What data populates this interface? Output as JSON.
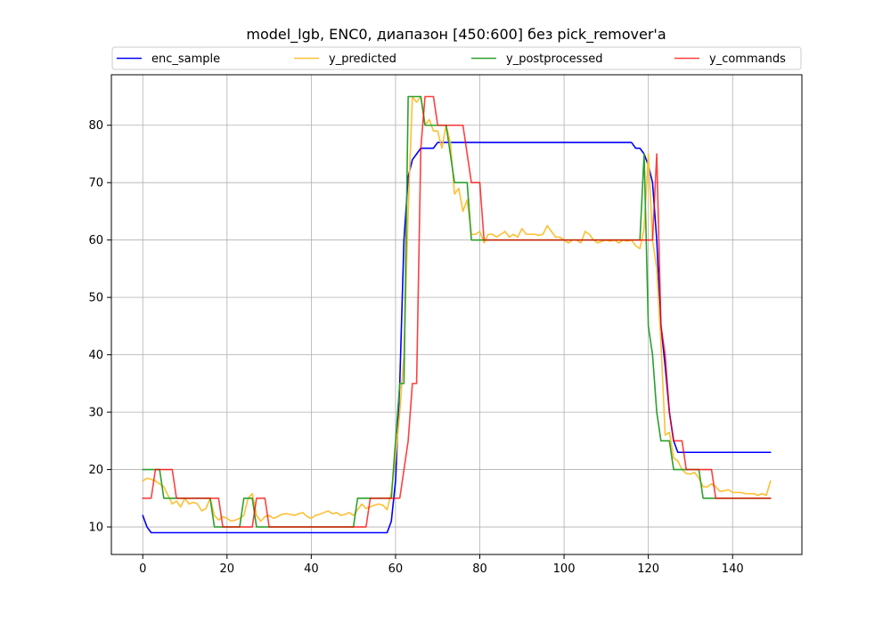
{
  "chart_data": {
    "type": "line",
    "title": "model_lgb, ENC0, диапазон [450:600] без pick_remover'a",
    "xlabel": "",
    "ylabel": "",
    "xlim": [
      -7.45,
      156.45
    ],
    "ylim": [
      5.2,
      88.8
    ],
    "xticks": [
      0,
      20,
      40,
      60,
      80,
      100,
      120,
      140
    ],
    "yticks": [
      10,
      20,
      30,
      40,
      50,
      60,
      70,
      80
    ],
    "grid": true,
    "legend_position": "top",
    "series": [
      {
        "name": "enc_sample",
        "color": "#0000ff",
        "opacity": 1,
        "points": [
          [
            0,
            12
          ],
          [
            1,
            10
          ],
          [
            2,
            9
          ],
          [
            58,
            9
          ],
          [
            59,
            11
          ],
          [
            60,
            18
          ],
          [
            61,
            35
          ],
          [
            62,
            60
          ],
          [
            63,
            71
          ],
          [
            64,
            74
          ],
          [
            65,
            75
          ],
          [
            66,
            76
          ],
          [
            69,
            76
          ],
          [
            70,
            77
          ],
          [
            116,
            77
          ],
          [
            117,
            76
          ],
          [
            118,
            76
          ],
          [
            119,
            75
          ],
          [
            120,
            73
          ],
          [
            121,
            70
          ],
          [
            122,
            60
          ],
          [
            123,
            45
          ],
          [
            124,
            38
          ],
          [
            125,
            30
          ],
          [
            126,
            25
          ],
          [
            127,
            23
          ],
          [
            149,
            23
          ]
        ]
      },
      {
        "name": "y_predicted",
        "color": "#ffbf33",
        "opacity": 1,
        "points": [
          [
            0,
            18
          ],
          [
            1,
            18.5
          ],
          [
            2,
            18.3
          ],
          [
            3,
            18
          ],
          [
            4,
            17.5
          ],
          [
            5,
            17
          ],
          [
            6,
            15.5
          ],
          [
            7,
            14
          ],
          [
            8,
            14.5
          ],
          [
            9,
            13.5
          ],
          [
            10,
            15
          ],
          [
            11,
            14
          ],
          [
            12,
            14.3
          ],
          [
            13,
            14
          ],
          [
            14,
            12.8
          ],
          [
            15,
            13.2
          ],
          [
            16,
            15
          ],
          [
            17,
            12
          ],
          [
            18,
            11.2
          ],
          [
            19,
            11.8
          ],
          [
            20,
            11.5
          ],
          [
            21,
            11
          ],
          [
            22,
            11.2
          ],
          [
            23,
            11.5
          ],
          [
            24,
            12
          ],
          [
            25,
            15
          ],
          [
            26,
            15.8
          ],
          [
            27,
            12
          ],
          [
            28,
            11
          ],
          [
            29,
            11.8
          ],
          [
            30,
            12
          ],
          [
            31,
            11.5
          ],
          [
            32,
            11.8
          ],
          [
            33,
            12.2
          ],
          [
            34,
            12.3
          ],
          [
            35,
            12.2
          ],
          [
            36,
            12
          ],
          [
            37,
            12.3
          ],
          [
            38,
            12.5
          ],
          [
            39,
            11.8
          ],
          [
            40,
            11.5
          ],
          [
            41,
            12
          ],
          [
            42,
            12.2
          ],
          [
            43,
            12.5
          ],
          [
            44,
            12.8
          ],
          [
            45,
            12.3
          ],
          [
            46,
            12.5
          ],
          [
            47,
            12
          ],
          [
            48,
            12.2
          ],
          [
            49,
            12.5
          ],
          [
            50,
            12
          ],
          [
            51,
            13
          ],
          [
            52,
            14
          ],
          [
            53,
            13.2
          ],
          [
            54,
            13.5
          ],
          [
            55,
            13.8
          ],
          [
            56,
            14
          ],
          [
            57,
            13.8
          ],
          [
            58,
            13
          ],
          [
            59,
            16
          ],
          [
            60,
            22
          ],
          [
            61,
            30
          ],
          [
            62,
            40
          ],
          [
            63,
            65
          ],
          [
            64,
            85
          ],
          [
            65,
            84
          ],
          [
            66,
            85
          ],
          [
            67,
            80
          ],
          [
            68,
            81
          ],
          [
            69,
            79
          ],
          [
            70,
            79
          ],
          [
            71,
            76
          ],
          [
            72,
            80
          ],
          [
            73,
            77
          ],
          [
            74,
            68
          ],
          [
            75,
            69
          ],
          [
            76,
            65
          ],
          [
            77,
            67
          ],
          [
            78,
            61
          ],
          [
            79,
            61
          ],
          [
            80,
            61.5
          ],
          [
            81,
            59.5
          ],
          [
            82,
            61
          ],
          [
            83,
            61
          ],
          [
            84,
            60.5
          ],
          [
            85,
            61
          ],
          [
            86,
            61.5
          ],
          [
            87,
            60.5
          ],
          [
            88,
            61
          ],
          [
            89,
            60.5
          ],
          [
            90,
            62
          ],
          [
            91,
            61
          ],
          [
            92,
            61
          ],
          [
            93,
            61
          ],
          [
            94,
            60.8
          ],
          [
            95,
            61
          ],
          [
            96,
            62.5
          ],
          [
            97,
            61.5
          ],
          [
            98,
            60.5
          ],
          [
            99,
            60.5
          ],
          [
            100,
            60
          ],
          [
            101,
            59.5
          ],
          [
            102,
            60
          ],
          [
            103,
            60
          ],
          [
            104,
            59.5
          ],
          [
            105,
            61.5
          ],
          [
            106,
            61
          ],
          [
            107,
            60
          ],
          [
            108,
            59.5
          ],
          [
            109,
            59.8
          ],
          [
            110,
            60
          ],
          [
            111,
            59.8
          ],
          [
            112,
            60
          ],
          [
            113,
            59.5
          ],
          [
            114,
            60
          ],
          [
            115,
            59.8
          ],
          [
            116,
            60
          ],
          [
            117,
            59
          ],
          [
            118,
            58.5
          ],
          [
            119,
            62
          ],
          [
            120,
            75
          ],
          [
            121,
            60
          ],
          [
            122,
            55
          ],
          [
            123,
            42
          ],
          [
            124,
            26
          ],
          [
            125,
            26.5
          ],
          [
            126,
            22
          ],
          [
            127,
            21.5
          ],
          [
            128,
            20
          ],
          [
            129,
            19.3
          ],
          [
            130,
            19.2
          ],
          [
            131,
            19.5
          ],
          [
            132,
            18.5
          ],
          [
            133,
            17
          ],
          [
            134,
            17
          ],
          [
            135,
            17.5
          ],
          [
            136,
            17
          ],
          [
            137,
            16.2
          ],
          [
            138,
            16.3
          ],
          [
            139,
            16.5
          ],
          [
            140,
            16
          ],
          [
            141,
            16
          ],
          [
            142,
            16
          ],
          [
            143,
            15.8
          ],
          [
            144,
            15.8
          ],
          [
            145,
            15.8
          ],
          [
            146,
            15.5
          ],
          [
            147,
            15.8
          ],
          [
            148,
            15.5
          ],
          [
            149,
            18
          ]
        ]
      },
      {
        "name": "y_postprocessed",
        "color": "#2ca02c",
        "opacity": 1,
        "points": [
          [
            0,
            20
          ],
          [
            3,
            20
          ],
          [
            4,
            20
          ],
          [
            5,
            15
          ],
          [
            7,
            15
          ],
          [
            8,
            15
          ],
          [
            9,
            15
          ],
          [
            15,
            15
          ],
          [
            16,
            15
          ],
          [
            17,
            10
          ],
          [
            22,
            10
          ],
          [
            23,
            10
          ],
          [
            24,
            15
          ],
          [
            26,
            15
          ],
          [
            27,
            10
          ],
          [
            29,
            10
          ],
          [
            30,
            10
          ],
          [
            50,
            10
          ],
          [
            51,
            15
          ],
          [
            58,
            15
          ],
          [
            59,
            15
          ],
          [
            60,
            25
          ],
          [
            61,
            35
          ],
          [
            62,
            35
          ],
          [
            63,
            85
          ],
          [
            65,
            85
          ],
          [
            66,
            85
          ],
          [
            67,
            80
          ],
          [
            71,
            80
          ],
          [
            72,
            80
          ],
          [
            73,
            75
          ],
          [
            74,
            70
          ],
          [
            77,
            70
          ],
          [
            78,
            60
          ],
          [
            118,
            60
          ],
          [
            119,
            75
          ],
          [
            120,
            45
          ],
          [
            121,
            40
          ],
          [
            122,
            30
          ],
          [
            123,
            25
          ],
          [
            125,
            25
          ],
          [
            126,
            20
          ],
          [
            132,
            20
          ],
          [
            133,
            15
          ],
          [
            149,
            15
          ]
        ]
      },
      {
        "name": "y_commands",
        "color": "#ff0000",
        "opacity": 0.75,
        "points": [
          [
            0,
            15
          ],
          [
            2,
            15
          ],
          [
            3,
            20
          ],
          [
            7,
            20
          ],
          [
            8,
            15
          ],
          [
            18,
            15
          ],
          [
            19,
            10
          ],
          [
            25,
            10
          ],
          [
            26,
            10
          ],
          [
            27,
            15
          ],
          [
            29,
            15
          ],
          [
            30,
            10
          ],
          [
            52,
            10
          ],
          [
            53,
            10
          ],
          [
            54,
            15
          ],
          [
            61,
            15
          ],
          [
            62,
            20
          ],
          [
            63,
            25
          ],
          [
            64,
            35
          ],
          [
            65,
            35
          ],
          [
            66,
            76
          ],
          [
            67,
            85
          ],
          [
            69,
            85
          ],
          [
            70,
            80
          ],
          [
            76,
            80
          ],
          [
            77,
            75
          ],
          [
            78,
            70
          ],
          [
            80,
            70
          ],
          [
            81,
            60
          ],
          [
            121,
            60
          ],
          [
            122,
            75
          ],
          [
            123,
            45
          ],
          [
            124,
            40
          ],
          [
            125,
            30
          ],
          [
            126,
            25
          ],
          [
            128,
            25
          ],
          [
            129,
            20
          ],
          [
            134,
            20
          ],
          [
            135,
            20
          ],
          [
            136,
            15
          ],
          [
            149,
            15
          ]
        ]
      }
    ]
  }
}
